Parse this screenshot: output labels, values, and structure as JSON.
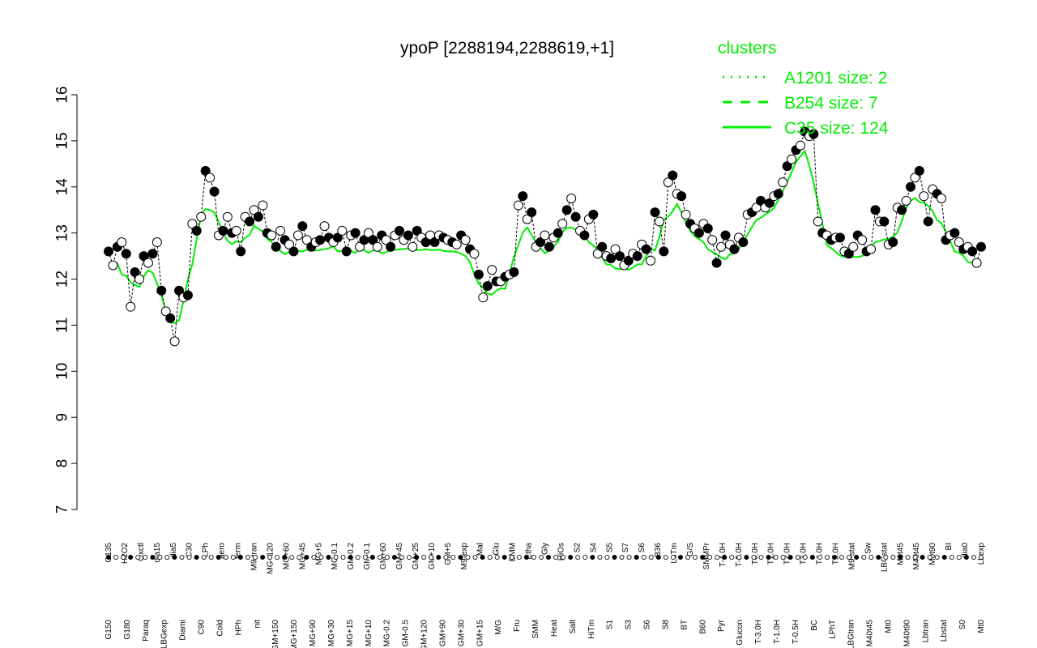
{
  "chart_data": {
    "type": "scatter",
    "title": "ypoP [2288194,2288619,+1]",
    "xlabel": "",
    "ylabel": "",
    "ylim": [
      7,
      16
    ],
    "yticks": [
      7,
      8,
      9,
      10,
      11,
      12,
      13,
      14,
      15,
      16
    ],
    "grid": false,
    "legend_position": "top-right",
    "legend_title": "clusters",
    "legend": [
      {
        "label": "A1201 size: 2",
        "style": "dotted",
        "color": "#00ee00"
      },
      {
        "label": "B254 size: 7",
        "style": "dashed",
        "color": "#00ee00"
      },
      {
        "label": "C35 size: 124",
        "style": "solid",
        "color": "#00ee00"
      }
    ],
    "x_labels_top": [
      "G135",
      "H2O2",
      "Oxctl",
      "dia15",
      "dia5",
      "C30",
      "LPh",
      "aero",
      "ferm",
      "M9-tran",
      "MG+120",
      "MG+60",
      "MG+45",
      "MG+5",
      "MG-0.1",
      "GM-0.2",
      "GM-0.1",
      "GM+60",
      "GM+45",
      "GM+25",
      "GM+10",
      "GM+5",
      "M9-exp",
      "Mal",
      "Glu",
      "BMM",
      "Etha",
      "Gly",
      "HiOs",
      "S2",
      "S4",
      "S5",
      "S7",
      "S6",
      "B36",
      "LoTm",
      "G/S",
      "SMMPr",
      "T-4.0H",
      "T-2.0H",
      "T0.0H",
      "T1.0H",
      "T2.0H",
      "T3.0H",
      "T4.0H",
      "T5.0H",
      "M9-stat",
      "Sw",
      "LBGstat",
      "M0t45",
      "M40t45",
      "M0t90",
      "BI",
      "dia0",
      "Lbexp"
    ],
    "x_labels_bottom": [
      "G150",
      "G180",
      "Paraq",
      "LBGexp",
      "Diami",
      "C90",
      "Cold",
      "HPh",
      "nit",
      "GM+150",
      "MG+150",
      "MG+90",
      "MG+30",
      "MG+15",
      "MG+10",
      "MG-0.2",
      "GM-0.5",
      "GM+120",
      "GM+90",
      "GM+30",
      "GM+15",
      "M/G",
      "Fru",
      "SMM",
      "Heat",
      "Salt",
      "HiTm",
      "S1",
      "S3",
      "S6",
      "S8",
      "BT",
      "B60",
      "Pyr",
      "Glucon",
      "T-3.0H",
      "T-1.0H",
      "T-0.5H",
      "BC",
      "LPhT",
      "LBGtran",
      "M40t45",
      "Mt0",
      "M40t90",
      "Lbtran",
      "Lbstat",
      "S0",
      "Mt0"
    ],
    "series": [
      {
        "values": [
          12.6,
          12.3,
          12.7,
          12.8,
          12.55,
          11.4,
          12.15,
          12.0,
          12.5,
          12.35,
          12.55,
          12.8,
          11.75,
          11.3,
          11.15,
          10.65,
          11.75,
          11.6,
          11.65,
          13.2,
          13.05,
          13.35,
          14.35,
          14.2,
          13.9,
          12.95,
          13.05,
          13.35,
          13.0,
          13.05,
          12.6,
          13.35,
          13.25,
          13.5,
          13.35,
          13.6,
          13.0,
          12.95,
          12.7,
          13.05,
          12.85,
          12.75,
          12.6,
          12.95,
          13.15,
          12.85,
          12.7,
          12.8,
          12.85,
          13.15,
          12.9,
          12.8,
          12.9,
          13.05,
          12.6,
          12.95,
          13.0,
          12.7,
          12.85,
          13.0,
          12.85,
          12.7,
          12.95,
          12.85,
          12.7,
          12.95,
          13.05,
          12.85,
          12.95,
          12.7,
          13.05,
          12.9,
          12.8,
          12.95,
          12.8,
          12.95,
          12.9,
          12.85,
          12.8,
          12.75,
          12.95,
          12.85,
          12.65,
          12.55,
          12.1,
          11.6,
          11.85,
          12.2,
          11.95,
          11.95,
          12.05,
          12.1,
          12.15,
          13.6,
          13.8,
          13.3,
          13.45,
          12.7,
          12.8,
          12.95,
          12.7,
          12.9,
          13.0,
          13.2,
          13.5,
          13.75,
          13.35,
          13.05,
          12.95,
          13.3,
          13.4,
          12.55,
          12.7,
          12.5,
          12.45,
          12.65,
          12.5,
          12.3,
          12.4,
          12.55,
          12.5,
          12.75,
          12.65,
          12.4,
          13.45,
          13.25,
          12.6,
          14.1,
          14.25,
          13.85,
          13.8,
          13.4,
          13.2,
          13.1,
          13.0,
          13.2,
          13.1,
          12.85,
          12.35,
          12.7,
          12.95,
          12.75,
          12.65,
          12.9,
          12.8,
          13.4,
          13.45,
          13.55,
          13.7,
          13.55,
          13.65,
          13.8,
          13.85,
          14.1,
          14.45,
          14.6,
          14.8,
          14.9,
          15.2,
          15.1,
          15.15,
          13.25,
          13.0,
          12.95,
          12.85,
          12.9,
          12.9,
          12.6,
          12.55,
          12.7,
          12.95,
          12.85,
          12.6,
          12.65,
          13.5,
          13.25,
          13.25,
          12.75,
          12.8,
          13.55,
          13.5,
          13.7,
          14.0,
          14.2,
          14.35,
          13.8,
          13.25,
          13.95,
          13.85,
          13.75,
          12.85,
          12.95,
          13.0,
          12.8,
          12.65,
          12.7,
          12.6,
          12.35,
          12.7
        ]
      }
    ]
  }
}
